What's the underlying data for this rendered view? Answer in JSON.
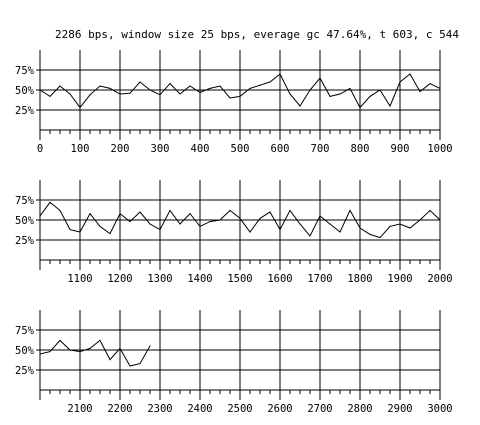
{
  "chart_data": {
    "type": "line",
    "title": "2286 bps, window size 25 bps, everage gc 47.64%, t 603, c 544",
    "xlabel": "",
    "ylabel": "",
    "y_tick_labels": [
      "75%",
      "50%",
      "25%"
    ],
    "y_ticks": [
      75,
      50,
      25
    ],
    "ylim": [
      0,
      100
    ],
    "grid": true,
    "series_color": "#000000",
    "panels": [
      {
        "xlim": [
          0,
          1000
        ],
        "x_ticks": [
          0,
          100,
          200,
          300,
          400,
          500,
          600,
          700,
          800,
          900,
          1000
        ],
        "x_tick_labels": [
          "0",
          "100",
          "200",
          "300",
          "400",
          "500",
          "600",
          "700",
          "800",
          "900",
          "1000"
        ],
        "x": [
          0,
          25,
          50,
          75,
          100,
          125,
          150,
          175,
          200,
          225,
          250,
          275,
          300,
          325,
          350,
          375,
          400,
          425,
          450,
          475,
          500,
          525,
          550,
          575,
          600,
          625,
          650,
          675,
          700,
          725,
          750,
          775,
          800,
          825,
          850,
          875,
          900,
          925,
          950,
          975,
          1000
        ],
        "y": [
          50,
          42,
          55,
          45,
          28,
          44,
          55,
          52,
          45,
          46,
          60,
          50,
          44,
          58,
          45,
          55,
          47,
          52,
          55,
          40,
          42,
          52,
          56,
          60,
          70,
          45,
          30,
          50,
          65,
          42,
          45,
          52,
          28,
          42,
          50,
          30,
          60,
          70,
          48,
          58,
          52
        ]
      },
      {
        "xlim": [
          1000,
          2000
        ],
        "x_ticks": [
          1000,
          1100,
          1200,
          1300,
          1400,
          1500,
          1600,
          1700,
          1800,
          1900,
          2000
        ],
        "x_tick_labels": [
          "",
          "1100",
          "1200",
          "1300",
          "1400",
          "1500",
          "1600",
          "1700",
          "1800",
          "1900",
          "2000"
        ],
        "x": [
          1000,
          1025,
          1050,
          1075,
          1100,
          1125,
          1150,
          1175,
          1200,
          1225,
          1250,
          1275,
          1300,
          1325,
          1350,
          1375,
          1400,
          1425,
          1450,
          1475,
          1500,
          1525,
          1550,
          1575,
          1600,
          1625,
          1650,
          1675,
          1700,
          1725,
          1750,
          1775,
          1800,
          1825,
          1850,
          1875,
          1900,
          1925,
          1950,
          1975,
          2000
        ],
        "y": [
          55,
          72,
          62,
          38,
          35,
          58,
          42,
          33,
          58,
          48,
          60,
          45,
          38,
          62,
          45,
          58,
          42,
          48,
          50,
          62,
          52,
          35,
          52,
          60,
          38,
          62,
          45,
          30,
          55,
          45,
          35,
          62,
          40,
          32,
          28,
          42,
          45,
          40,
          50,
          62,
          50
        ]
      },
      {
        "xlim": [
          2000,
          3000
        ],
        "x_ticks": [
          2000,
          2100,
          2200,
          2300,
          2400,
          2500,
          2600,
          2700,
          2800,
          2900,
          3000
        ],
        "x_tick_labels": [
          "",
          "2100",
          "2200",
          "2300",
          "2400",
          "2500",
          "2600",
          "2700",
          "2800",
          "2900",
          "3000"
        ],
        "x": [
          2000,
          2025,
          2050,
          2075,
          2100,
          2125,
          2150,
          2175,
          2200,
          2225,
          2250,
          2275
        ],
        "y": [
          45,
          48,
          62,
          50,
          48,
          52,
          62,
          38,
          52,
          30,
          33,
          55
        ]
      }
    ]
  }
}
